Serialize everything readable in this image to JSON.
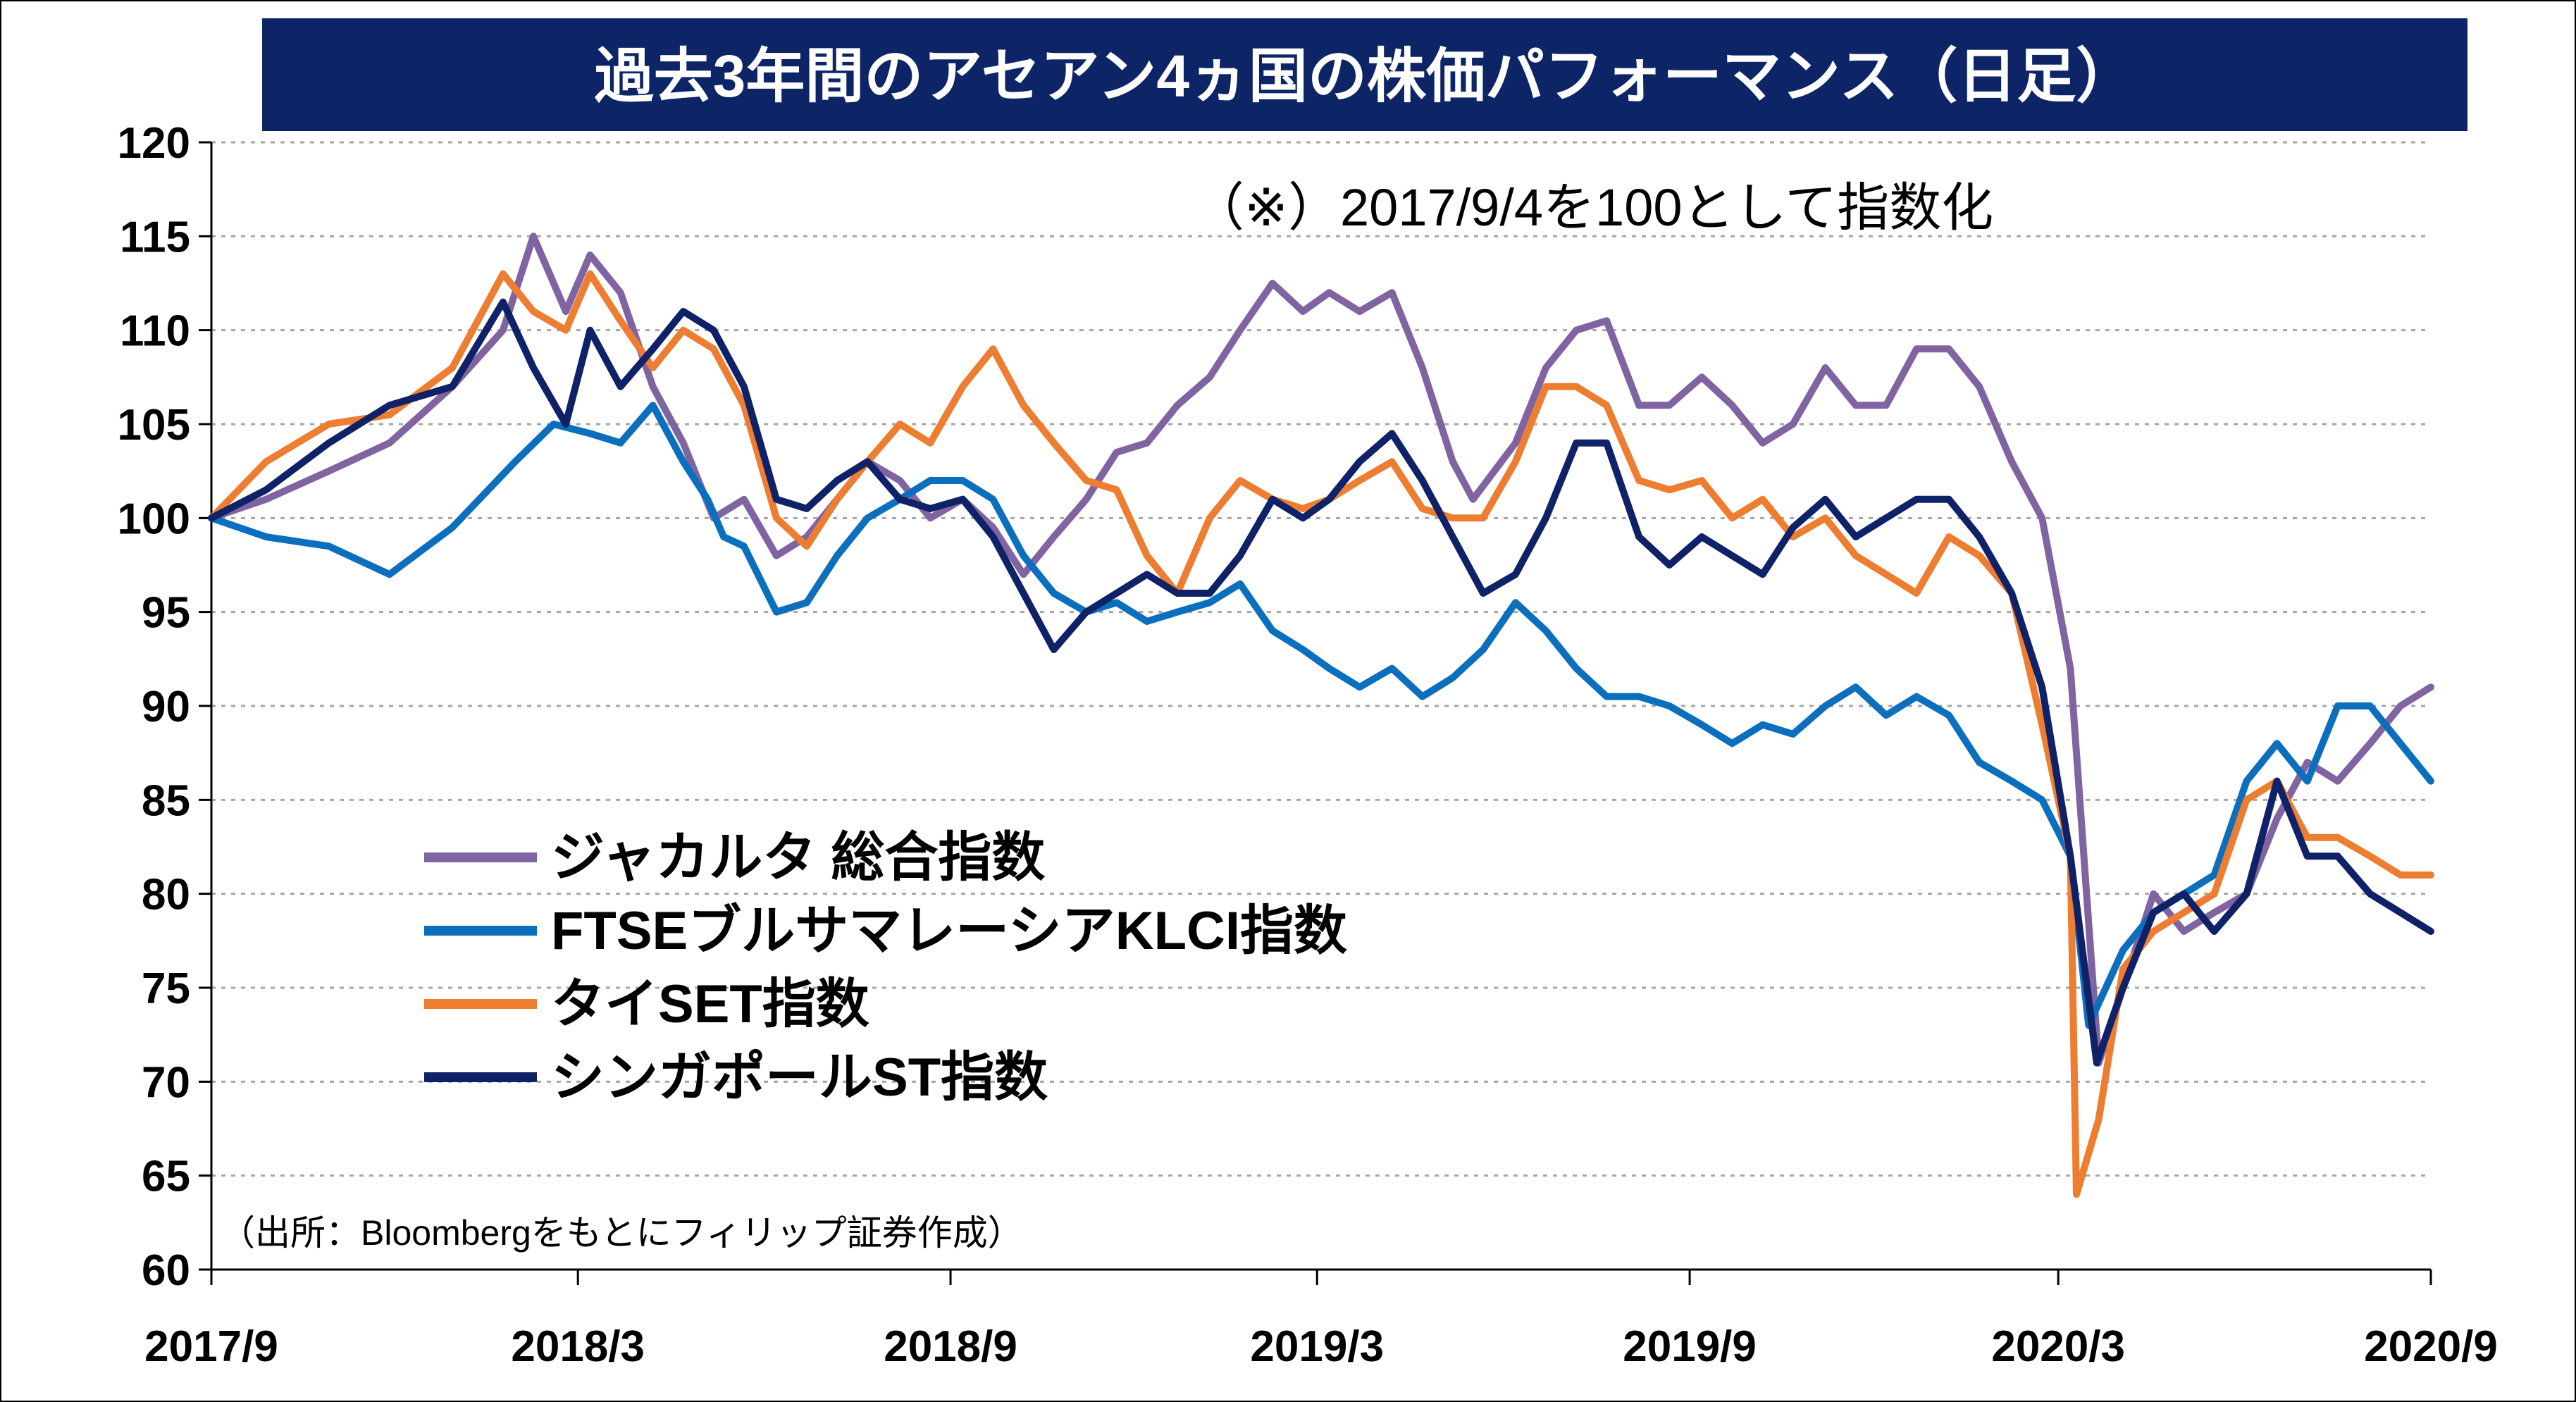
{
  "chart_data": {
    "type": "line",
    "title": "過去3年間のアセアン4ヵ国の株価パフォーマンス（日足）",
    "note": "（※）2017/9/4を100として指数化",
    "source": "（出所：Bloombergをもとにフィリップ証券作成）",
    "xlabel": "",
    "ylabel": "",
    "ylim": [
      60,
      120
    ],
    "yticks": [
      60,
      65,
      70,
      75,
      80,
      85,
      90,
      95,
      100,
      105,
      110,
      115,
      120
    ],
    "xticks": [
      "2017/9",
      "2018/3",
      "2018/9",
      "2019/3",
      "2019/9",
      "2020/3",
      "2020/9"
    ],
    "xlim": [
      "2017-09-04",
      "2020-09-04"
    ],
    "grid": true,
    "legend_position": "lower-left",
    "title_bg": "#0d2466",
    "series": [
      {
        "name": "ジャカルタ 総合指数",
        "color": "#8064a2",
        "x": [
          "2017-09-04",
          "2017-10-01",
          "2017-11-01",
          "2017-12-01",
          "2018-01-01",
          "2018-01-26",
          "2018-02-10",
          "2018-02-26",
          "2018-03-10",
          "2018-03-25",
          "2018-04-10",
          "2018-04-25",
          "2018-05-10",
          "2018-05-25",
          "2018-06-10",
          "2018-06-25",
          "2018-07-10",
          "2018-07-25",
          "2018-08-10",
          "2018-08-25",
          "2018-09-10",
          "2018-09-25",
          "2018-10-10",
          "2018-10-25",
          "2018-11-10",
          "2018-11-25",
          "2018-12-10",
          "2018-12-25",
          "2019-01-10",
          "2019-01-25",
          "2019-02-10",
          "2019-02-25",
          "2019-03-10",
          "2019-03-25",
          "2019-04-10",
          "2019-04-25",
          "2019-05-10",
          "2019-05-20",
          "2019-06-10",
          "2019-06-25",
          "2019-07-10",
          "2019-07-25",
          "2019-08-10",
          "2019-08-25",
          "2019-09-10",
          "2019-09-25",
          "2019-10-10",
          "2019-10-25",
          "2019-11-10",
          "2019-11-25",
          "2019-12-10",
          "2019-12-25",
          "2020-01-10",
          "2020-01-25",
          "2020-02-10",
          "2020-02-25",
          "2020-03-10",
          "2020-03-24",
          "2020-04-05",
          "2020-04-20",
          "2020-05-05",
          "2020-05-20",
          "2020-06-05",
          "2020-06-20",
          "2020-07-05",
          "2020-07-20",
          "2020-08-05",
          "2020-08-20",
          "2020-09-04"
        ],
        "y": [
          100,
          101,
          102.5,
          104,
          107,
          110,
          115,
          111,
          114,
          112,
          107,
          104,
          100,
          101,
          98,
          99,
          101,
          103,
          102,
          100,
          101,
          99.5,
          97,
          99,
          101,
          103.5,
          104,
          106,
          107.5,
          110,
          112.5,
          111,
          112,
          111,
          112,
          108,
          103,
          101,
          104,
          108,
          110,
          110.5,
          106,
          106,
          107.5,
          106,
          104,
          105,
          108,
          106,
          106,
          109,
          109,
          107,
          103,
          100,
          92,
          71,
          75,
          80,
          78,
          79,
          80,
          84,
          87,
          86,
          88,
          90,
          91
        ]
      },
      {
        "name": "FTSEブルサマレーシアKLCI指数",
        "color": "#0b6fbd",
        "x": [
          "2017-09-04",
          "2017-10-01",
          "2017-11-01",
          "2017-12-01",
          "2018-01-01",
          "2018-02-01",
          "2018-02-20",
          "2018-03-10",
          "2018-03-25",
          "2018-04-10",
          "2018-04-25",
          "2018-05-07",
          "2018-05-15",
          "2018-05-25",
          "2018-06-10",
          "2018-06-25",
          "2018-07-10",
          "2018-07-25",
          "2018-08-10",
          "2018-08-25",
          "2018-09-10",
          "2018-09-25",
          "2018-10-10",
          "2018-10-25",
          "2018-11-10",
          "2018-11-25",
          "2018-12-10",
          "2018-12-25",
          "2019-01-10",
          "2019-01-25",
          "2019-02-10",
          "2019-02-25",
          "2019-03-10",
          "2019-03-25",
          "2019-04-10",
          "2019-04-25",
          "2019-05-10",
          "2019-05-25",
          "2019-06-10",
          "2019-06-25",
          "2019-07-10",
          "2019-07-25",
          "2019-08-10",
          "2019-08-25",
          "2019-09-10",
          "2019-09-25",
          "2019-10-10",
          "2019-10-25",
          "2019-11-10",
          "2019-11-25",
          "2019-12-10",
          "2019-12-25",
          "2020-01-10",
          "2020-01-25",
          "2020-02-10",
          "2020-02-25",
          "2020-03-10",
          "2020-03-19",
          "2020-04-05",
          "2020-04-20",
          "2020-05-05",
          "2020-05-20",
          "2020-06-05",
          "2020-06-20",
          "2020-07-05",
          "2020-07-20",
          "2020-08-05",
          "2020-08-20",
          "2020-09-04"
        ],
        "y": [
          100,
          99,
          98.5,
          97,
          99.5,
          103,
          105,
          104.5,
          104,
          106,
          103,
          101,
          99,
          98.5,
          95,
          95.5,
          98,
          100,
          101,
          102,
          102,
          101,
          98,
          96,
          95,
          95.5,
          94.5,
          95,
          95.5,
          96.5,
          94,
          93,
          92,
          91,
          92,
          90.5,
          91.5,
          93,
          95.5,
          94,
          92,
          90.5,
          90.5,
          90,
          89,
          88,
          89,
          88.5,
          90,
          91,
          89.5,
          90.5,
          89.5,
          87,
          86,
          85,
          82,
          73,
          77,
          79,
          80,
          81,
          86,
          88,
          86,
          90,
          90,
          88,
          86
        ]
      },
      {
        "name": "タイSET指数",
        "color": "#ed7d31",
        "x": [
          "2017-09-04",
          "2017-10-01",
          "2017-11-01",
          "2017-12-01",
          "2018-01-01",
          "2018-01-26",
          "2018-02-10",
          "2018-02-26",
          "2018-03-10",
          "2018-03-25",
          "2018-04-10",
          "2018-04-25",
          "2018-05-10",
          "2018-05-25",
          "2018-06-10",
          "2018-06-25",
          "2018-07-10",
          "2018-07-25",
          "2018-08-10",
          "2018-08-25",
          "2018-09-10",
          "2018-09-25",
          "2018-10-10",
          "2018-10-25",
          "2018-11-10",
          "2018-11-25",
          "2018-12-10",
          "2018-12-25",
          "2019-01-10",
          "2019-01-25",
          "2019-02-10",
          "2019-02-25",
          "2019-03-10",
          "2019-03-25",
          "2019-04-10",
          "2019-04-25",
          "2019-05-10",
          "2019-05-25",
          "2019-06-10",
          "2019-06-25",
          "2019-07-10",
          "2019-07-25",
          "2019-08-10",
          "2019-08-25",
          "2019-09-10",
          "2019-09-25",
          "2019-10-10",
          "2019-10-25",
          "2019-11-10",
          "2019-11-25",
          "2019-12-10",
          "2019-12-25",
          "2020-01-10",
          "2020-01-25",
          "2020-02-10",
          "2020-02-25",
          "2020-03-10",
          "2020-03-13",
          "2020-03-24",
          "2020-04-05",
          "2020-04-20",
          "2020-05-05",
          "2020-05-20",
          "2020-06-05",
          "2020-06-20",
          "2020-07-05",
          "2020-07-20",
          "2020-08-05",
          "2020-08-20",
          "2020-09-04"
        ],
        "y": [
          100,
          103,
          105,
          105.5,
          108,
          113,
          111,
          110,
          113,
          110.5,
          108,
          110,
          109,
          106,
          100,
          98.5,
          101,
          103,
          105,
          104,
          107,
          109,
          106,
          104,
          102,
          101.5,
          98,
          96,
          100,
          102,
          101,
          100.5,
          101,
          102,
          103,
          100.5,
          100,
          100,
          103,
          107,
          107,
          106,
          102,
          101.5,
          102,
          100,
          101,
          99,
          100,
          98,
          97,
          96,
          99,
          98,
          96,
          89,
          82,
          64,
          68,
          76,
          78,
          79,
          80,
          85,
          86,
          83,
          83,
          82,
          81,
          81
        ]
      },
      {
        "name": "シンガポールST指数",
        "color": "#0f2167",
        "x": [
          "2017-09-04",
          "2017-10-01",
          "2017-11-01",
          "2017-12-01",
          "2018-01-01",
          "2018-01-26",
          "2018-02-10",
          "2018-02-26",
          "2018-03-10",
          "2018-03-25",
          "2018-04-10",
          "2018-04-25",
          "2018-05-10",
          "2018-05-25",
          "2018-06-10",
          "2018-06-25",
          "2018-07-10",
          "2018-07-25",
          "2018-08-10",
          "2018-08-25",
          "2018-09-10",
          "2018-09-25",
          "2018-10-10",
          "2018-10-25",
          "2018-11-10",
          "2018-11-25",
          "2018-12-10",
          "2018-12-25",
          "2019-01-10",
          "2019-01-25",
          "2019-02-10",
          "2019-02-25",
          "2019-03-10",
          "2019-03-25",
          "2019-04-10",
          "2019-04-25",
          "2019-05-10",
          "2019-05-25",
          "2019-06-10",
          "2019-06-25",
          "2019-07-10",
          "2019-07-25",
          "2019-08-10",
          "2019-08-25",
          "2019-09-10",
          "2019-09-25",
          "2019-10-10",
          "2019-10-25",
          "2019-11-10",
          "2019-11-25",
          "2019-12-10",
          "2019-12-25",
          "2020-01-10",
          "2020-01-25",
          "2020-02-10",
          "2020-02-25",
          "2020-03-10",
          "2020-03-23",
          "2020-04-05",
          "2020-04-20",
          "2020-05-05",
          "2020-05-20",
          "2020-06-05",
          "2020-06-20",
          "2020-07-05",
          "2020-07-20",
          "2020-08-05",
          "2020-08-20",
          "2020-09-04"
        ],
        "y": [
          100,
          101.5,
          104,
          106,
          107,
          111.5,
          108,
          105,
          110,
          107,
          109,
          111,
          110,
          107,
          101,
          100.5,
          102,
          103,
          101,
          100.5,
          101,
          99,
          96,
          93,
          95,
          96,
          97,
          96,
          96,
          98,
          101,
          100,
          101,
          103,
          104.5,
          102,
          99,
          96,
          97,
          100,
          104,
          104,
          99,
          97.5,
          99,
          98,
          97,
          99.5,
          101,
          99,
          100,
          101,
          101,
          99,
          96,
          91,
          82,
          71,
          75,
          79,
          80,
          78,
          80,
          86,
          82,
          82,
          80,
          79,
          78
        ]
      }
    ]
  }
}
